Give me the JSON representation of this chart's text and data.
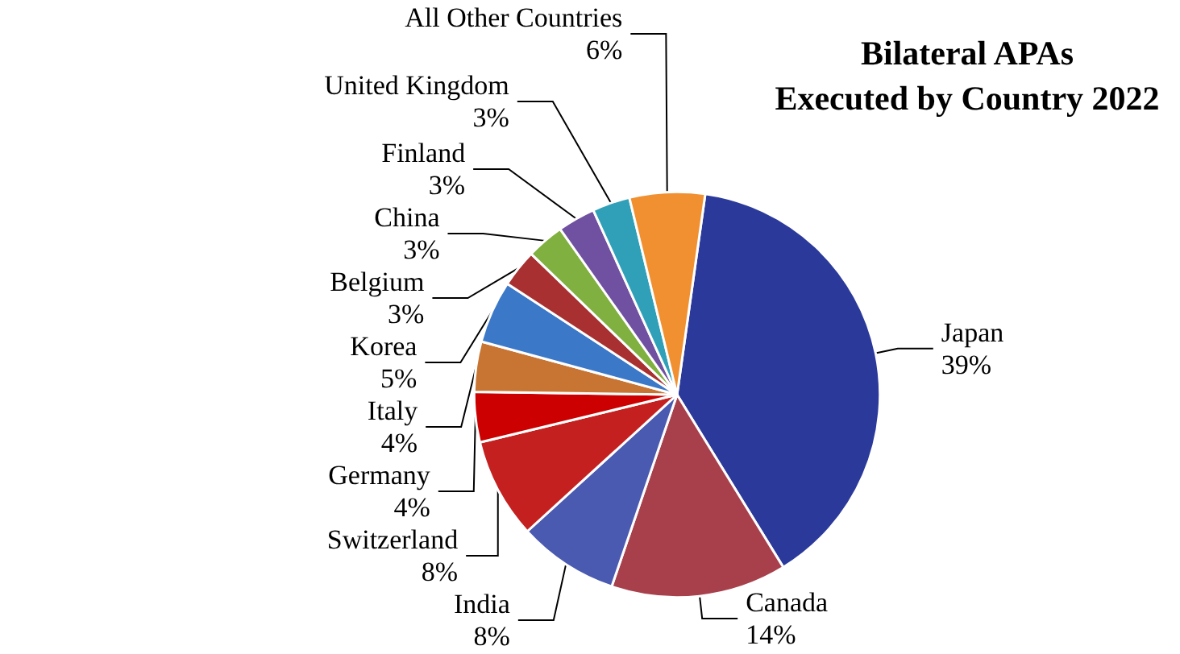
{
  "chart_data": {
    "type": "pie",
    "title": "Bilateral APAs\nExecuted by Country 2022",
    "categories": [
      "Japan",
      "Canada",
      "India",
      "Switzerland",
      "Germany",
      "Italy",
      "Korea",
      "Belgium",
      "China",
      "Finland",
      "United Kingdom",
      "All Other Countries"
    ],
    "values": [
      39,
      14,
      8,
      8,
      4,
      4,
      5,
      3,
      3,
      3,
      3,
      6
    ],
    "value_labels": [
      "39%",
      "14%",
      "8%",
      "8%",
      "4%",
      "4%",
      "5%",
      "3%",
      "3%",
      "3%",
      "3%",
      "6%"
    ],
    "colors": [
      "#2b3a9a",
      "#a8404c",
      "#4a5ab0",
      "#c42020",
      "#cc0000",
      "#c87533",
      "#3b78c8",
      "#a83030",
      "#80b040",
      "#7050a0",
      "#30a0b8",
      "#f09030"
    ],
    "legend": false
  }
}
